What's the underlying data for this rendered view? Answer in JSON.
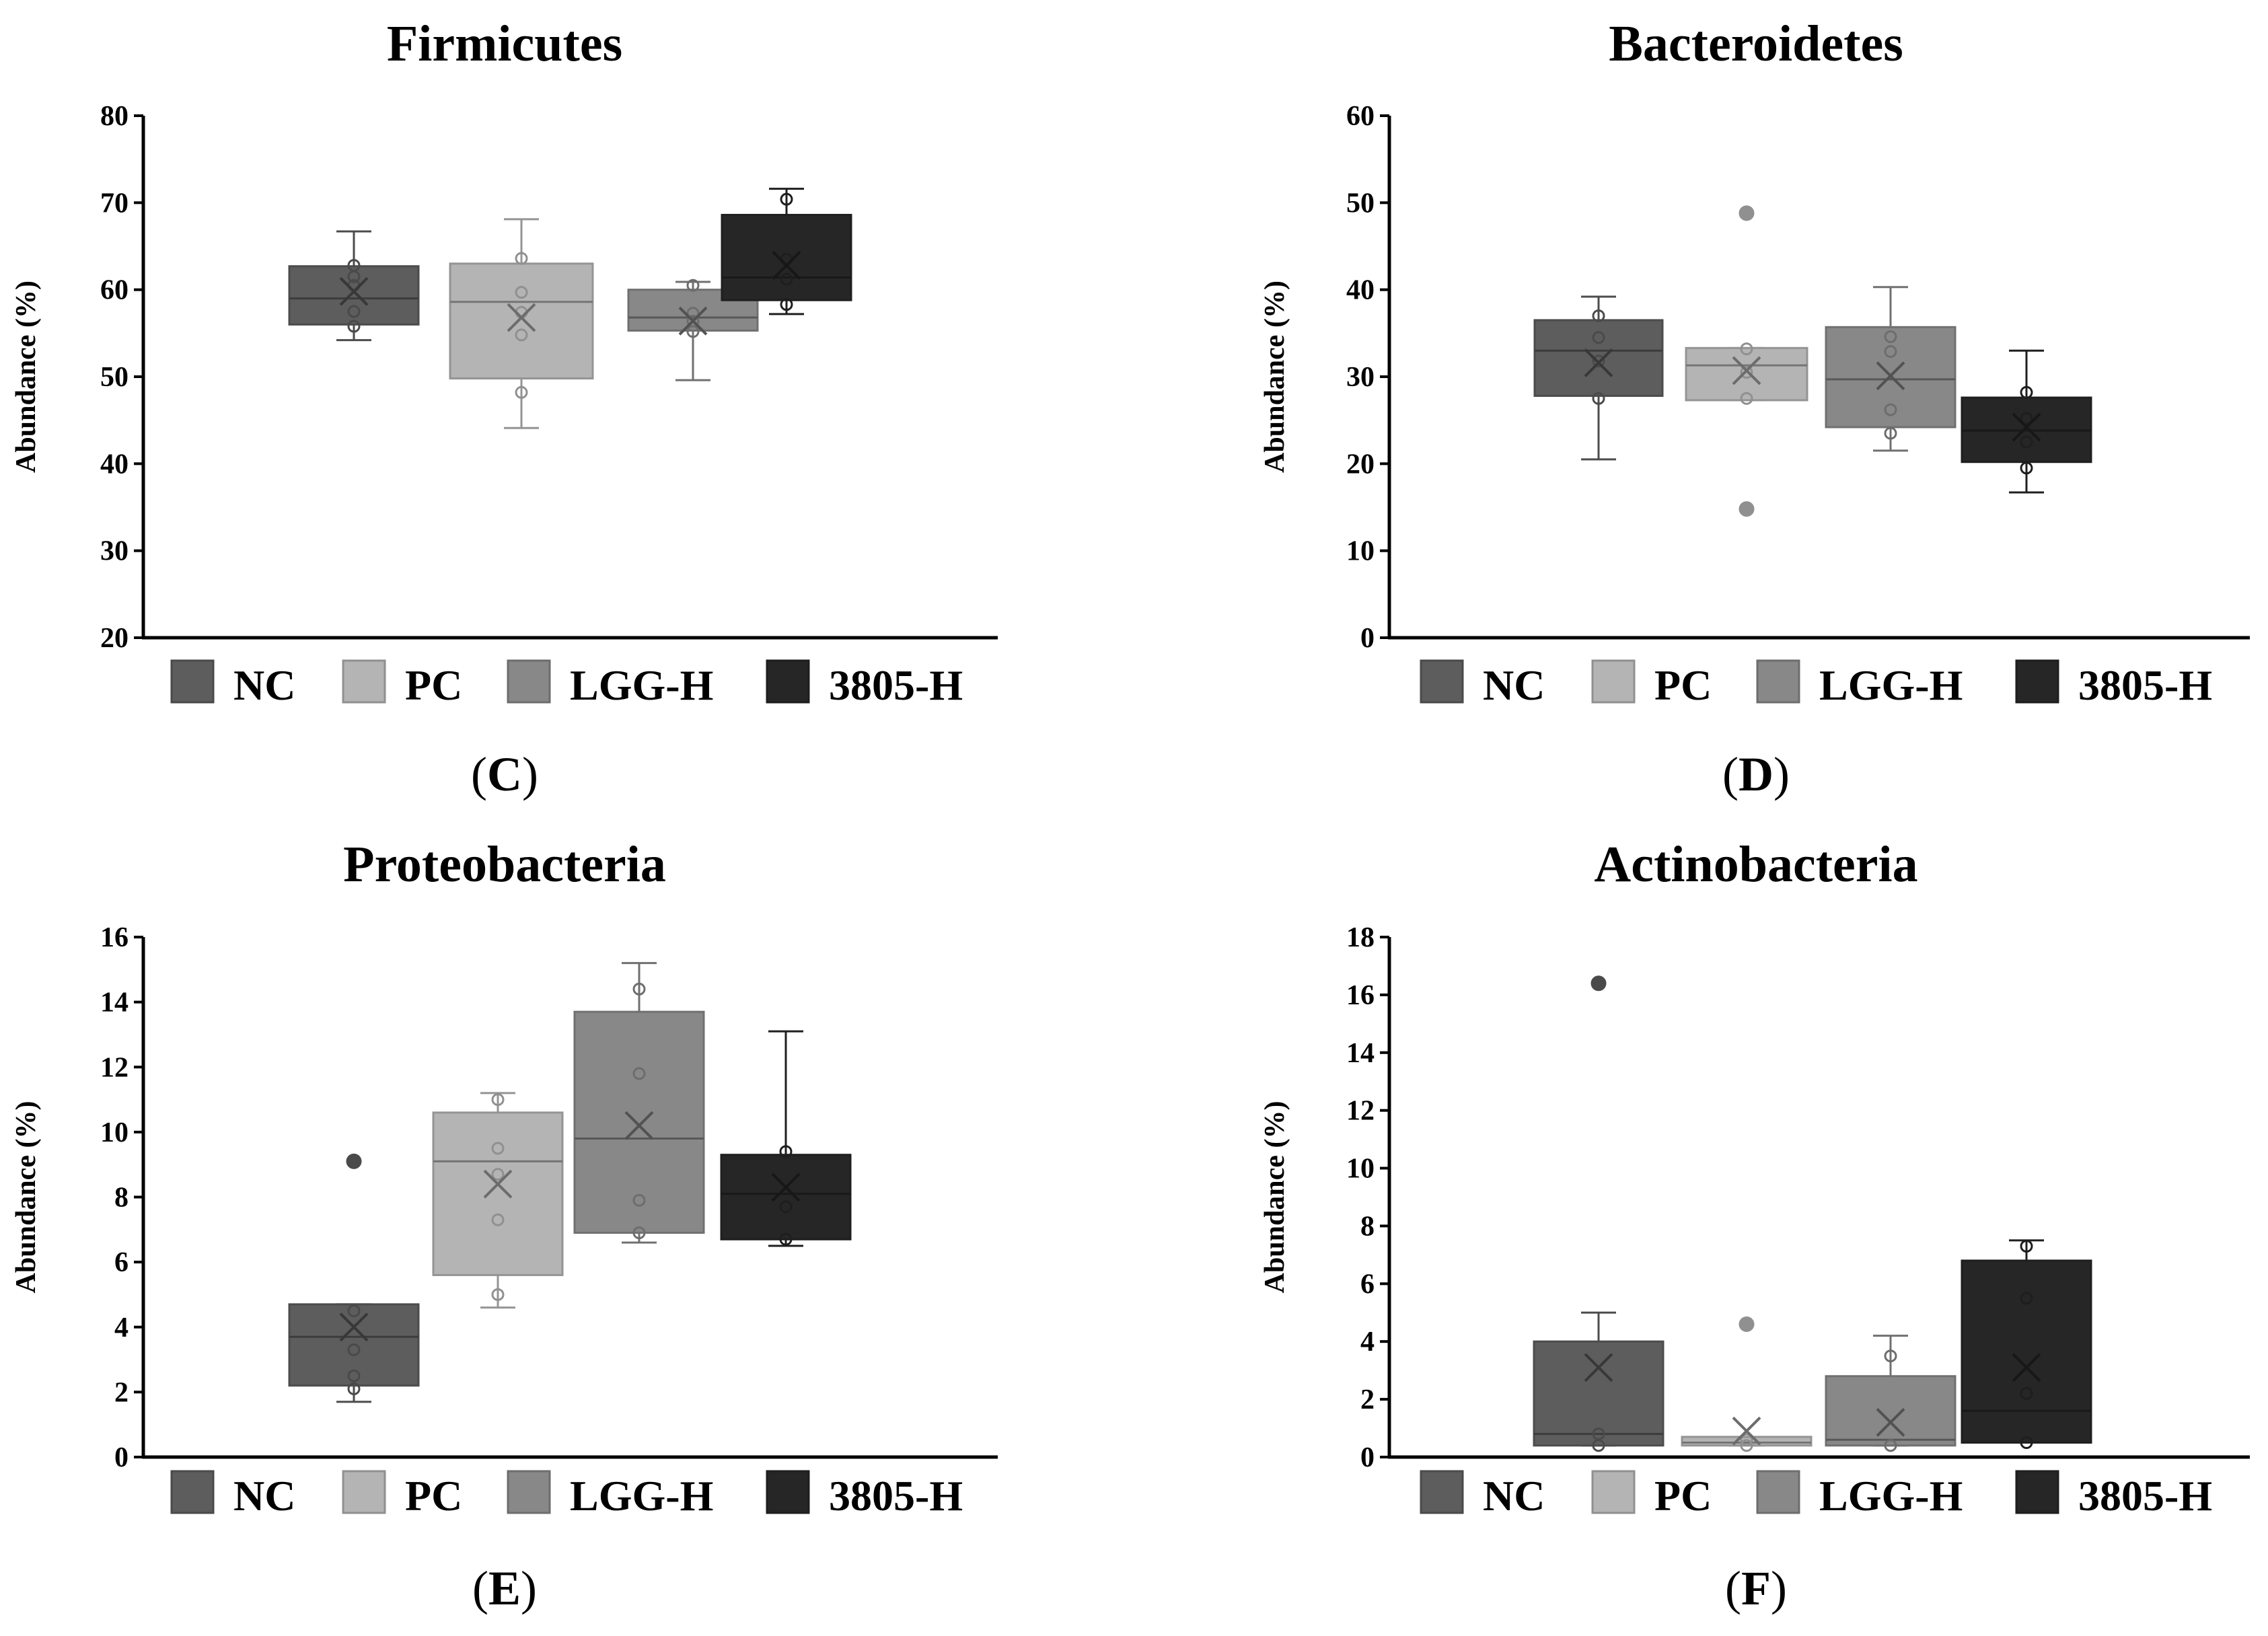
{
  "colors": {
    "NC": "#5d5d5d",
    "PC": "#b4b4b4",
    "LGG-H": "#888888",
    "3805-H": "#262626"
  },
  "legend": [
    "NC",
    "PC",
    "LGG-H",
    "3805-H"
  ],
  "chart_data": [
    {
      "type": "box",
      "title": "Firmicutes",
      "panel_letter": "C",
      "ylabel": "Abundance (%)",
      "ylim": [
        20,
        80
      ],
      "yticks": [
        20,
        30,
        40,
        50,
        60,
        70,
        80
      ],
      "groups": [
        {
          "name": "NC",
          "whisker_low": 54.2,
          "q1": 56,
          "median": 59,
          "q3": 62.7,
          "whisker_high": 66.7,
          "mean": 59.8,
          "points": [
            55.8,
            57.5,
            60.5,
            61.5,
            62.8
          ],
          "outliers": []
        },
        {
          "name": "PC",
          "whisker_low": 44.1,
          "q1": 49.8,
          "median": 58.6,
          "q3": 63,
          "whisker_high": 68.1,
          "mean": 56.8,
          "points": [
            48.2,
            54.8,
            57.4,
            59.7,
            63.6
          ],
          "outliers": []
        },
        {
          "name": "LGG-H",
          "whisker_low": 49.6,
          "q1": 55.3,
          "median": 56.8,
          "q3": 60,
          "whisker_high": 60.9,
          "mean": 56.4,
          "points": [
            55.2,
            56.4,
            57.3,
            60.5
          ],
          "outliers": []
        },
        {
          "name": "3805-H",
          "whisker_low": 57.2,
          "q1": 58.8,
          "median": 61.4,
          "q3": 68.6,
          "whisker_high": 71.6,
          "mean": 62.8,
          "points": [
            58.3,
            61.2,
            63.5,
            70.4
          ],
          "outliers": []
        }
      ]
    },
    {
      "type": "box",
      "title": "Bacteroidetes",
      "panel_letter": "D",
      "ylabel": "Abundance (%)",
      "ylim": [
        0,
        60
      ],
      "yticks": [
        0,
        10,
        20,
        30,
        40,
        50,
        60
      ],
      "groups": [
        {
          "name": "NC",
          "whisker_low": 20.5,
          "q1": 27.8,
          "median": 33,
          "q3": 36.5,
          "whisker_high": 39.2,
          "mean": 31.6,
          "points": [
            27.5,
            31.8,
            34.5,
            37
          ],
          "outliers": []
        },
        {
          "name": "PC",
          "whisker_low": 27.3,
          "q1": 27.3,
          "median": 31.3,
          "q3": 33.3,
          "whisker_high": 33.3,
          "mean": 30.7,
          "points": [
            27.5,
            30.5,
            33.2
          ],
          "outliers": [
            48.8,
            14.8
          ]
        },
        {
          "name": "LGG-H",
          "whisker_low": 21.5,
          "q1": 24.2,
          "median": 29.7,
          "q3": 35.7,
          "whisker_high": 40.3,
          "mean": 30.1,
          "points": [
            23.5,
            26.2,
            32.9,
            34.6
          ],
          "outliers": []
        },
        {
          "name": "3805-H",
          "whisker_low": 16.7,
          "q1": 20.2,
          "median": 23.8,
          "q3": 27.6,
          "whisker_high": 33,
          "mean": 24.2,
          "points": [
            19.5,
            22.5,
            25.2,
            28.2
          ],
          "outliers": []
        }
      ]
    },
    {
      "type": "box",
      "title": "Proteobacteria",
      "panel_letter": "E",
      "ylabel": "Abundance (%)",
      "ylim": [
        0,
        16
      ],
      "yticks": [
        0,
        2,
        4,
        6,
        8,
        10,
        12,
        14,
        16
      ],
      "groups": [
        {
          "name": "NC",
          "whisker_low": 1.7,
          "q1": 2.2,
          "median": 3.7,
          "q3": 4.7,
          "whisker_high": 4.7,
          "mean": 4,
          "points": [
            2.1,
            2.5,
            3.3,
            4.5
          ],
          "outliers": [
            9.1
          ]
        },
        {
          "name": "PC",
          "whisker_low": 4.6,
          "q1": 5.6,
          "median": 9.1,
          "q3": 10.6,
          "whisker_high": 11.2,
          "mean": 8.4,
          "points": [
            5,
            7.3,
            8.7,
            9.5,
            11
          ],
          "outliers": []
        },
        {
          "name": "LGG-H",
          "whisker_low": 6.6,
          "q1": 6.9,
          "median": 9.8,
          "q3": 13.7,
          "whisker_high": 15.2,
          "mean": 10.2,
          "points": [
            6.9,
            7.9,
            11.8,
            14.4
          ],
          "outliers": []
        },
        {
          "name": "3805-H",
          "whisker_low": 6.5,
          "q1": 6.7,
          "median": 8.1,
          "q3": 9.3,
          "whisker_high": 13.1,
          "mean": 8.3,
          "points": [
            6.7,
            7.7,
            9.4
          ],
          "outliers": []
        }
      ]
    },
    {
      "type": "box",
      "title": "Actinobacteria",
      "panel_letter": "F",
      "ylabel": "Abundance (%)",
      "ylim": [
        0,
        18
      ],
      "yticks": [
        0,
        2,
        4,
        6,
        8,
        10,
        12,
        14,
        16,
        18
      ],
      "groups": [
        {
          "name": "NC",
          "whisker_low": 0.4,
          "q1": 0.4,
          "median": 0.8,
          "q3": 4,
          "whisker_high": 5,
          "mean": 3.1,
          "points": [
            0.4,
            0.8
          ],
          "outliers": [
            16.4
          ]
        },
        {
          "name": "PC",
          "whisker_low": 0.4,
          "q1": 0.4,
          "median": 0.5,
          "q3": 0.7,
          "whisker_high": 0.7,
          "mean": 0.9,
          "points": [
            0.4,
            0.6
          ],
          "outliers": [
            4.6
          ]
        },
        {
          "name": "LGG-H",
          "whisker_low": 0.4,
          "q1": 0.4,
          "median": 0.6,
          "q3": 2.8,
          "whisker_high": 4.2,
          "mean": 1.2,
          "points": [
            0.4,
            3.5
          ],
          "outliers": []
        },
        {
          "name": "3805-H",
          "whisker_low": 0.5,
          "q1": 0.5,
          "median": 1.6,
          "q3": 6.8,
          "whisker_high": 7.5,
          "mean": 3.1,
          "points": [
            0.5,
            2.2,
            5.5,
            7.3
          ],
          "outliers": []
        }
      ]
    }
  ]
}
